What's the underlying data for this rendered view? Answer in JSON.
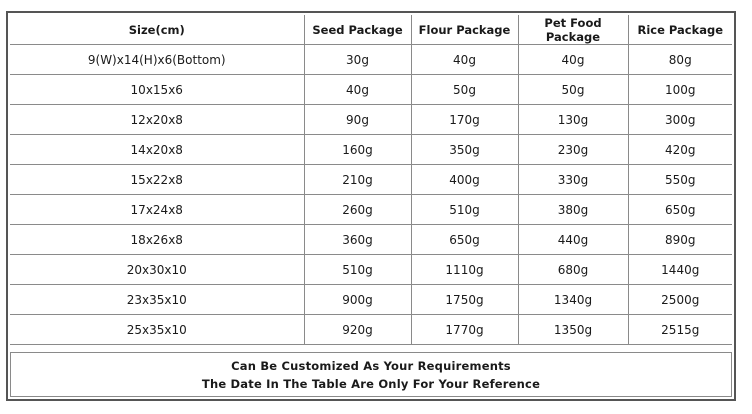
{
  "table": {
    "headers": [
      "Size(cm)",
      "Seed Package",
      "Flour Package",
      "Pet Food Package",
      "Rice Package"
    ],
    "rows": [
      [
        "9(W)x14(H)x6(Bottom)",
        "30g",
        "40g",
        "40g",
        "80g"
      ],
      [
        "10x15x6",
        "40g",
        "50g",
        "50g",
        "100g"
      ],
      [
        "12x20x8",
        "90g",
        "170g",
        "130g",
        "300g"
      ],
      [
        "14x20x8",
        "160g",
        "350g",
        "230g",
        "420g"
      ],
      [
        "15x22x8",
        "210g",
        "400g",
        "330g",
        "550g"
      ],
      [
        "17x24x8",
        "260g",
        "510g",
        "380g",
        "650g"
      ],
      [
        "18x26x8",
        "360g",
        "650g",
        "440g",
        "890g"
      ],
      [
        "20x30x10",
        "510g",
        "1110g",
        "680g",
        "1440g"
      ],
      [
        "23x35x10",
        "900g",
        "1750g",
        "1340g",
        "2500g"
      ],
      [
        "25x35x10",
        "920g",
        "1770g",
        "1350g",
        "2515g"
      ]
    ]
  },
  "note": {
    "line1": "Can Be Customized As Your Requirements",
    "line2": "The Date In The Table Are Only For Your Reference"
  }
}
